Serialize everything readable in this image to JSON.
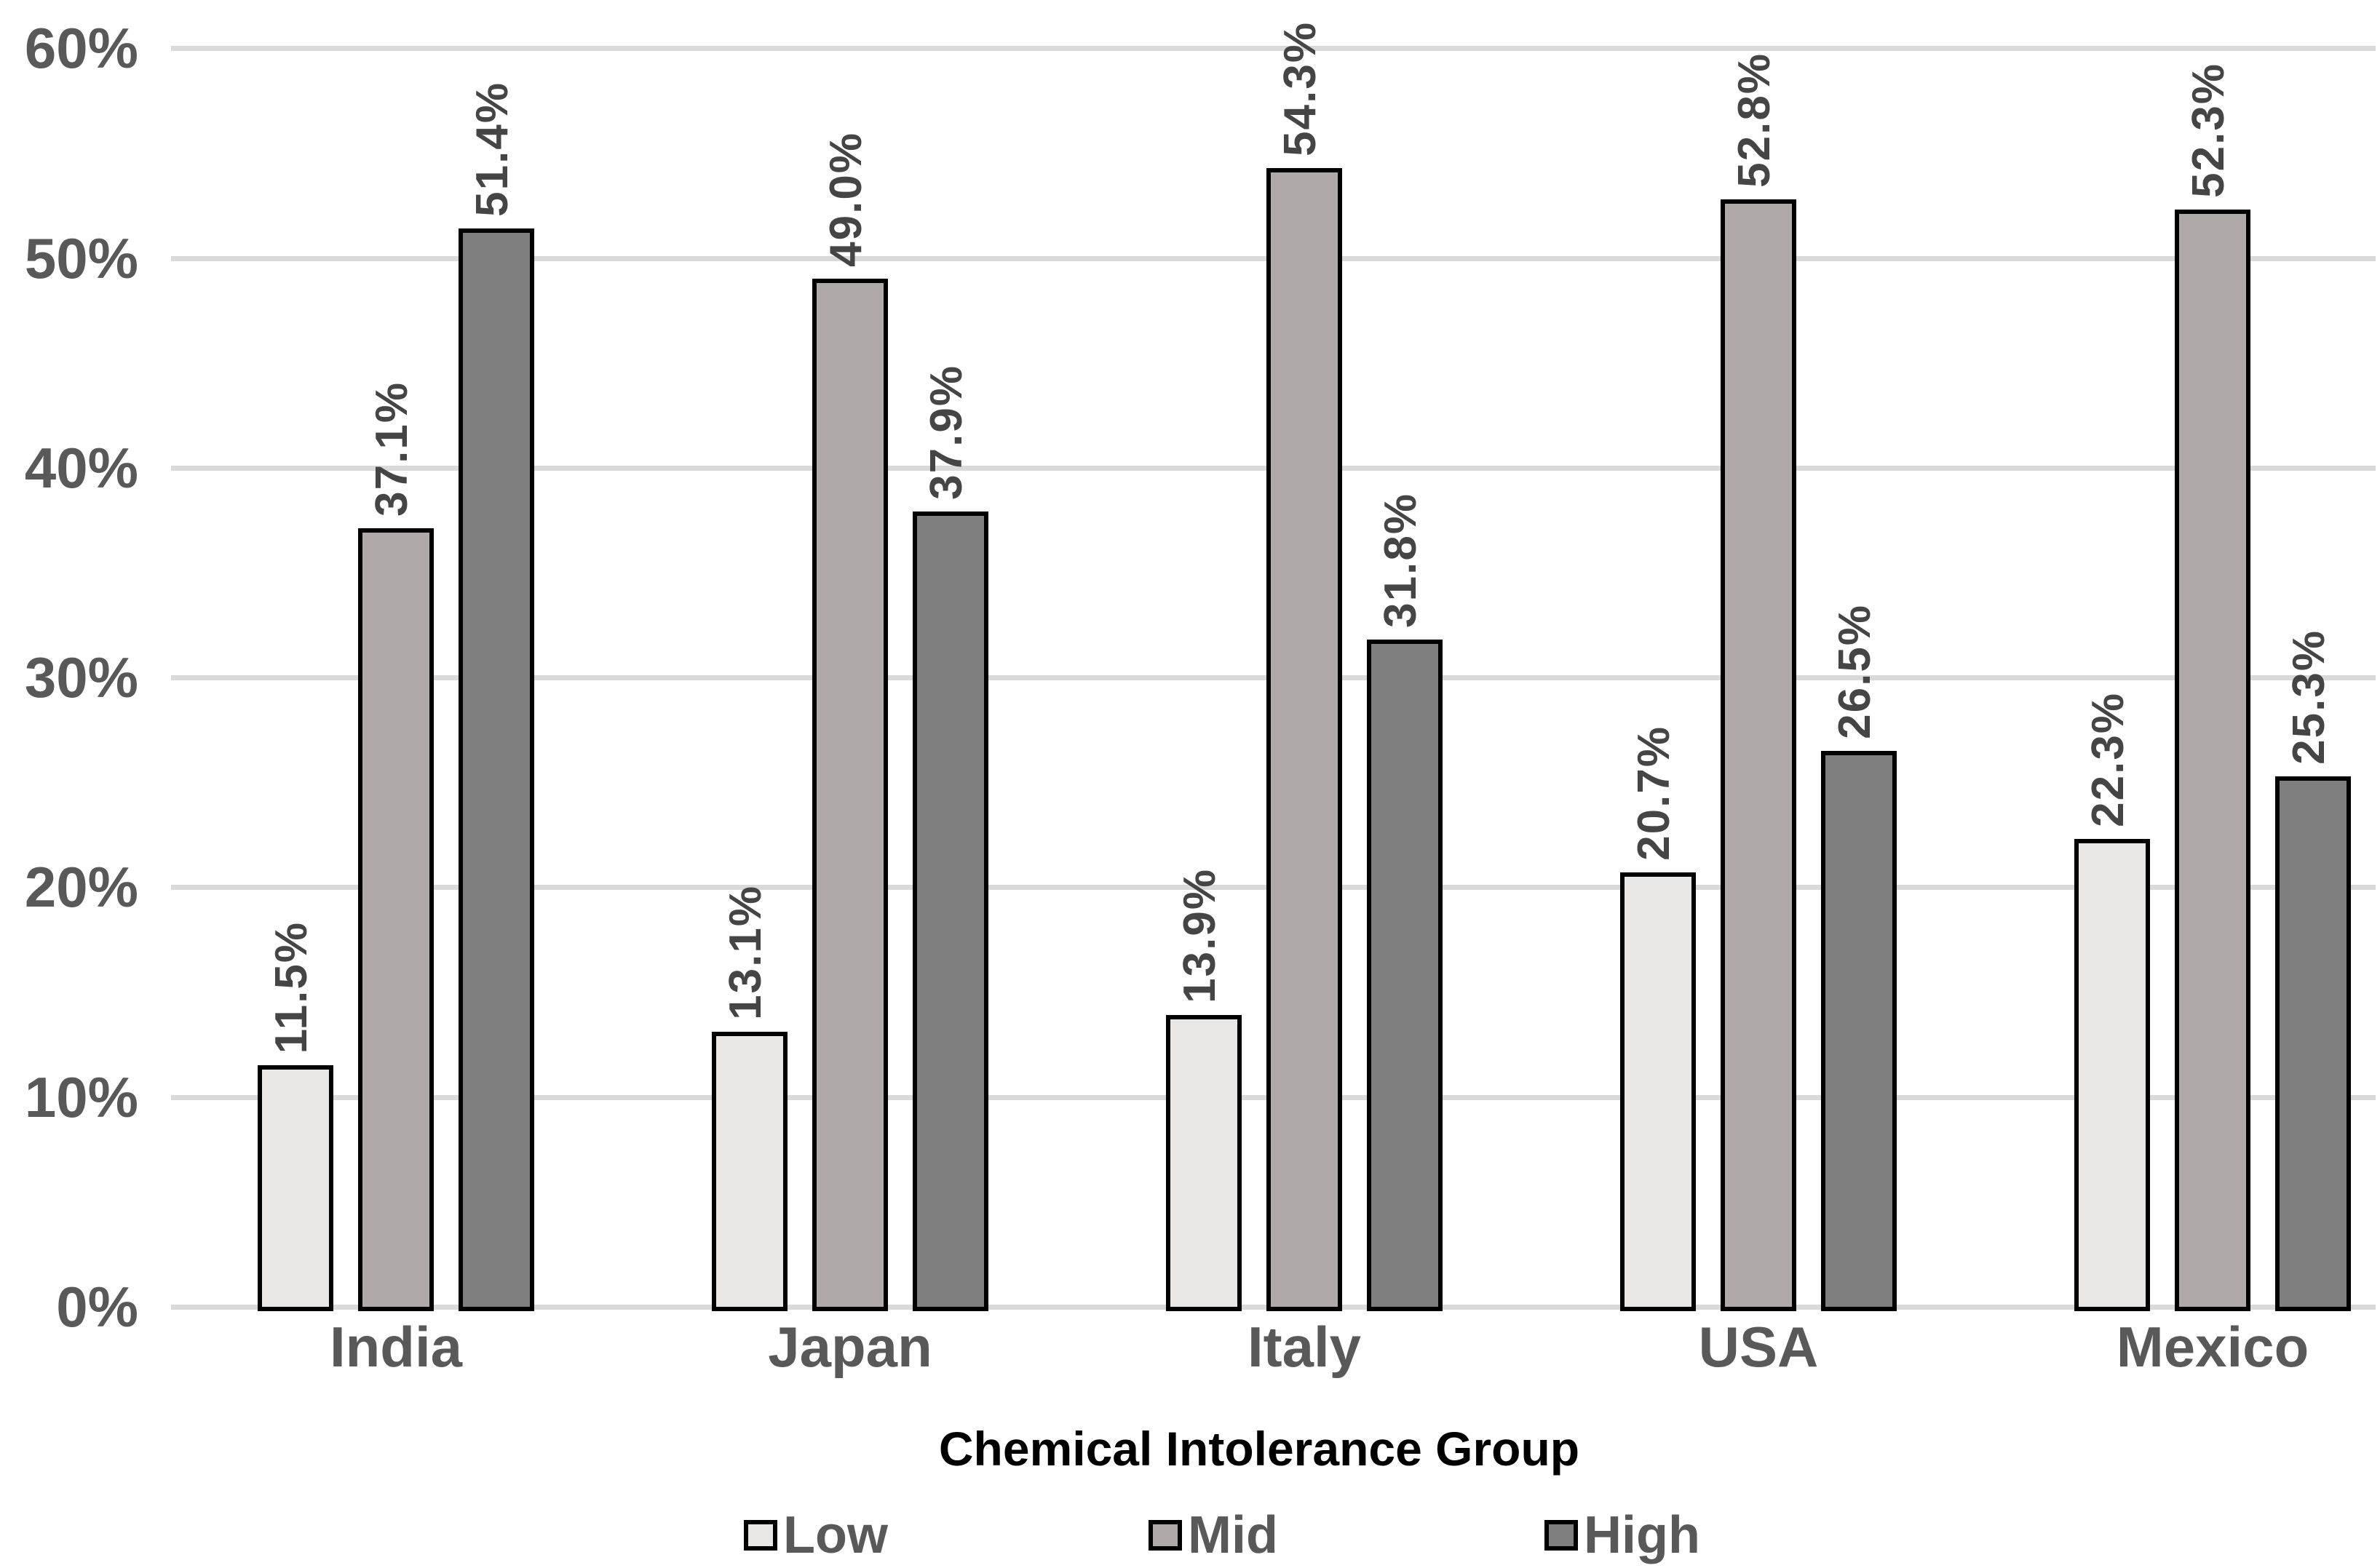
{
  "chart_data": {
    "type": "bar",
    "title": "",
    "categories": [
      "India",
      "Japan",
      "Italy",
      "USA",
      "Mexico"
    ],
    "series": [
      {
        "name": "Low",
        "color": "#e8e7e5",
        "values": [
          11.5,
          13.1,
          13.9,
          20.7,
          22.3
        ]
      },
      {
        "name": "Mid",
        "color": "#afaaa8",
        "values": [
          37.1,
          49.0,
          54.3,
          52.8,
          52.3
        ]
      },
      {
        "name": "High",
        "color": "#7f7f7f",
        "values": [
          51.4,
          37.9,
          31.8,
          26.5,
          25.3
        ]
      }
    ],
    "data_labels": [
      [
        "11.5%",
        "13.1%",
        "13.9%",
        "20.7%",
        "22.3%"
      ],
      [
        "37.1%",
        "49.0%",
        "54.3%",
        "52.8%",
        "52.3%"
      ],
      [
        "51.4%",
        "37.9%",
        "31.8%",
        "26.5%",
        "25.3%"
      ]
    ],
    "xlabel": "Chemical Intolerance Group",
    "ylabel": "",
    "ylim": [
      0,
      60
    ],
    "ytick_labels": [
      "0%",
      "10%",
      "20%",
      "30%",
      "40%",
      "50%",
      "60%"
    ],
    "grid": true,
    "legend_position": "bottom",
    "legend_entries": [
      "Low",
      "Mid",
      "High"
    ]
  },
  "colors": {
    "bar_border": "#000000",
    "gridline": "#d9d9d9",
    "axis_text": "#595959",
    "data_label_text": "#454545",
    "title_text": "#000000",
    "background": "#ffffff"
  }
}
